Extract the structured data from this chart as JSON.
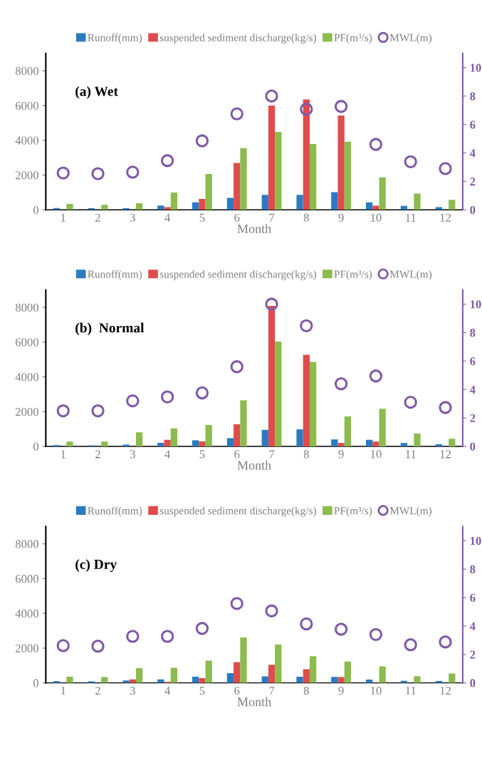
{
  "chart_data": [
    {
      "type": "bar",
      "xlabel": "Month",
      "annotations": [
        "(a) Wet"
      ],
      "categories": [
        "1",
        "2",
        "3",
        "4",
        "5",
        "6",
        "7",
        "8",
        "9",
        "10",
        "11",
        "12"
      ],
      "ylim": [
        0,
        9000
      ],
      "yticks": [
        0,
        2000,
        4000,
        6000,
        8000
      ],
      "y2lim": [
        0,
        11
      ],
      "y2ticks": [
        0,
        2,
        4,
        6,
        8,
        10
      ],
      "grid": false,
      "legend": "top",
      "series": [
        {
          "name": "Runoff(mm)",
          "color": "#2a7bc1",
          "values": [
            100,
            90,
            90,
            250,
            430,
            690,
            860,
            860,
            1020,
            430,
            230,
            150
          ]
        },
        {
          "name": "suspended sediment discharge(kg/s)",
          "color": "#e04b4b",
          "values": [
            null,
            null,
            null,
            150,
            630,
            2700,
            6000,
            6350,
            5430,
            240,
            null,
            null
          ]
        },
        {
          "name": "PF(m³/s)",
          "color": "#8cbb4e",
          "values": [
            340,
            290,
            380,
            1000,
            2060,
            3550,
            4480,
            3780,
            3920,
            1870,
            930,
            570
          ]
        },
        {
          "name": "MWL(m)",
          "type": "scatter",
          "axis": "y2",
          "marker": "circle",
          "color": "#7f5aa8",
          "values": [
            2.59,
            2.54,
            2.65,
            3.46,
            4.85,
            6.75,
            8.0,
            7.08,
            7.27,
            4.6,
            3.38,
            2.9
          ]
        }
      ]
    },
    {
      "type": "bar",
      "xlabel": "Month",
      "annotations": [
        "(b)  Normal"
      ],
      "categories": [
        "1",
        "2",
        "3",
        "4",
        "5",
        "6",
        "7",
        "8",
        "9",
        "10",
        "11",
        "12"
      ],
      "ylim": [
        0,
        9000
      ],
      "yticks": [
        0,
        2000,
        4000,
        6000,
        8000
      ],
      "y2lim": [
        0,
        11
      ],
      "y2ticks": [
        0,
        2,
        4,
        6,
        8,
        10
      ],
      "grid": false,
      "legend": "top",
      "series": [
        {
          "name": "Runoff(mm)",
          "color": "#2a7bc1",
          "values": [
            70,
            60,
            100,
            200,
            350,
            470,
            950,
            980,
            400,
            380,
            190,
            120
          ]
        },
        {
          "name": "suspended sediment discharge(kg/s)",
          "color": "#e04b4b",
          "values": [
            null,
            null,
            null,
            380,
            290,
            1270,
            8080,
            5270,
            200,
            280,
            null,
            null
          ]
        },
        {
          "name": "PF(m³/s)",
          "color": "#8cbb4e",
          "values": [
            270,
            280,
            810,
            1030,
            1230,
            2650,
            6030,
            4860,
            1720,
            2160,
            740,
            440
          ]
        },
        {
          "name": "MWL(m)",
          "type": "scatter",
          "axis": "y2",
          "marker": "circle",
          "color": "#7f5aa8",
          "values": [
            2.5,
            2.5,
            3.2,
            3.48,
            3.76,
            5.6,
            10.0,
            8.48,
            4.4,
            4.95,
            3.1,
            2.73
          ]
        }
      ]
    },
    {
      "type": "bar",
      "xlabel": "Month",
      "annotations": [
        "(c) Dry"
      ],
      "categories": [
        "1",
        "2",
        "3",
        "4",
        "5",
        "6",
        "7",
        "8",
        "9",
        "10",
        "11",
        "12"
      ],
      "ylim": [
        0,
        9000
      ],
      "yticks": [
        0,
        2000,
        4000,
        6000,
        8000
      ],
      "y2lim": [
        0,
        11
      ],
      "y2ticks": [
        0,
        2,
        4,
        6,
        8,
        10
      ],
      "grid": false,
      "legend": "top",
      "series": [
        {
          "name": "Runoff(mm)",
          "color": "#2a7bc1",
          "values": [
            100,
            90,
            140,
            200,
            350,
            560,
            380,
            360,
            340,
            190,
            120,
            110
          ]
        },
        {
          "name": "suspended sediment discharge(kg/s)",
          "color": "#e04b4b",
          "values": [
            null,
            null,
            200,
            60,
            270,
            1200,
            1040,
            790,
            330,
            null,
            null,
            null
          ]
        },
        {
          "name": "PF(m³/s)",
          "color": "#8cbb4e",
          "values": [
            350,
            330,
            850,
            870,
            1280,
            2610,
            2210,
            1530,
            1230,
            950,
            390,
            540
          ]
        },
        {
          "name": "MWL(m)",
          "type": "scatter",
          "axis": "y2",
          "marker": "circle",
          "color": "#7f5aa8",
          "values": [
            2.62,
            2.58,
            3.27,
            3.27,
            3.83,
            5.58,
            5.06,
            4.15,
            3.77,
            3.4,
            2.68,
            2.88
          ]
        }
      ]
    }
  ]
}
